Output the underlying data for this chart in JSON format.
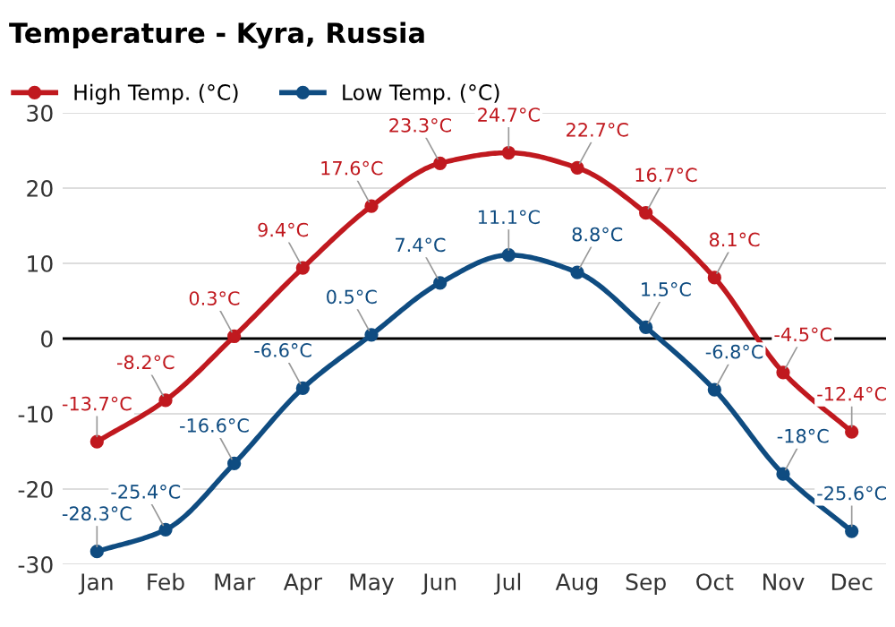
{
  "chart_data": {
    "type": "line",
    "title": "Temperature - Kyra, Russia",
    "categories": [
      "Jan",
      "Feb",
      "Mar",
      "Apr",
      "May",
      "Jun",
      "Jul",
      "Aug",
      "Sep",
      "Oct",
      "Nov",
      "Dec"
    ],
    "series": [
      {
        "name": "High Temp. (°C)",
        "color": "#c0191f",
        "values": [
          -13.7,
          -8.2,
          0.3,
          9.4,
          17.6,
          23.3,
          24.7,
          22.7,
          16.7,
          8.1,
          -4.5,
          -12.4
        ],
        "value_labels": [
          "-13.7°C",
          "-8.2°C",
          "0.3°C",
          "9.4°C",
          "17.6°C",
          "23.3°C",
          "24.7°C",
          "22.7°C",
          "16.7°C",
          "8.1°C",
          "-4.5°C",
          "-12.4°C"
        ]
      },
      {
        "name": "Low Temp. (°C)",
        "color": "#0f4c81",
        "values": [
          -28.3,
          -25.4,
          -16.6,
          -6.6,
          0.5,
          7.4,
          11.1,
          8.8,
          1.5,
          -6.8,
          -18,
          -25.6
        ],
        "value_labels": [
          "-28.3°C",
          "-25.4°C",
          "-16.6°C",
          "-6.6°C",
          "0.5°C",
          "7.4°C",
          "11.1°C",
          "8.8°C",
          "1.5°C",
          "-6.8°C",
          "-18°C",
          "-25.6°C"
        ]
      }
    ],
    "ylim": [
      -30,
      30
    ],
    "yticks": [
      -30,
      -20,
      -10,
      0,
      10,
      20,
      30
    ],
    "ref_lines": [
      {
        "axis": "y",
        "value": 0,
        "color": "#000000"
      }
    ],
    "grid": "y",
    "legend": "top left",
    "marker": "circle",
    "line_style": "solid"
  }
}
